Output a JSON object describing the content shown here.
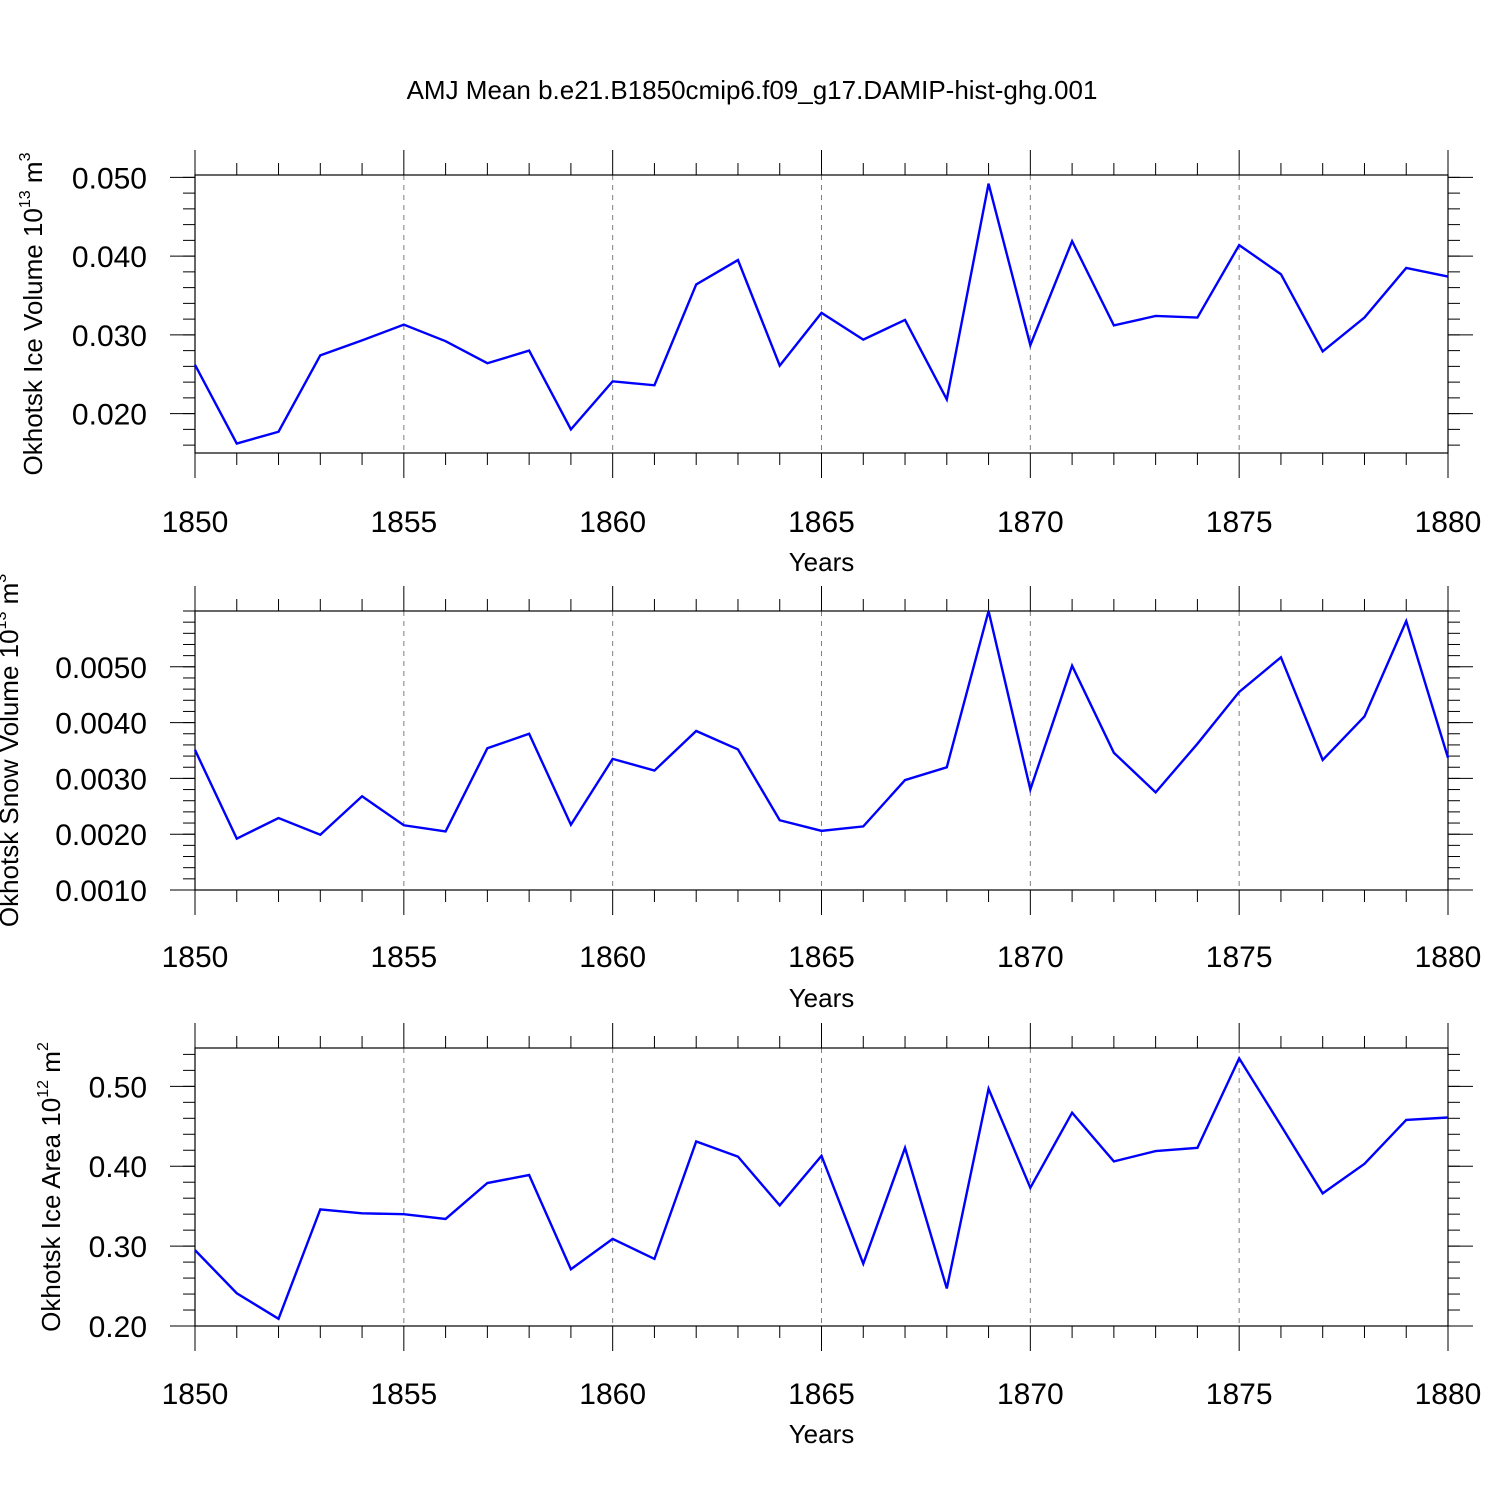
{
  "title": "AMJ Mean b.e21.B1850cmip6.f09_g17.DAMIP-hist-ghg.001",
  "series_color": "#0000ff",
  "chart_data": [
    {
      "type": "line",
      "ylabel_main": "Okhotsk Ice Volume 10",
      "ylabel_exp": "13",
      "ylabel_unit": " m",
      "ylabel_unit_exp": "3",
      "xlabel": "Years",
      "xlim": [
        1850,
        1880
      ],
      "ylim": [
        0.015,
        0.0503
      ],
      "x_major_ticks": [
        1850,
        1855,
        1860,
        1865,
        1870,
        1875,
        1880
      ],
      "x_tick_labels": [
        "1850",
        "1855",
        "1860",
        "1865",
        "1870",
        "1875",
        "1880"
      ],
      "y_major_ticks": [
        0.02,
        0.03,
        0.04,
        0.05
      ],
      "y_tick_labels": [
        "0.020",
        "0.030",
        "0.040",
        "0.050"
      ],
      "y_minor_step": 0.002,
      "grid": "vertical dashed at major x ticks",
      "x": [
        1850,
        1851,
        1852,
        1853,
        1854,
        1855,
        1856,
        1857,
        1858,
        1859,
        1860,
        1861,
        1862,
        1863,
        1864,
        1865,
        1866,
        1867,
        1868,
        1869,
        1870,
        1871,
        1872,
        1873,
        1874,
        1875,
        1876,
        1877,
        1878,
        1879,
        1880
      ],
      "values": [
        0.0262,
        0.0162,
        0.0177,
        0.0274,
        0.0293,
        0.0313,
        0.0292,
        0.0264,
        0.028,
        0.018,
        0.0241,
        0.0236,
        0.0364,
        0.0395,
        0.0261,
        0.0328,
        0.0294,
        0.0319,
        0.0218,
        0.0492,
        0.0287,
        0.0419,
        0.0312,
        0.0324,
        0.0322,
        0.0414,
        0.0377,
        0.0279,
        0.0322,
        0.0385,
        0.0374
      ]
    },
    {
      "type": "line",
      "ylabel_main": "Okhotsk Snow Volume 10",
      "ylabel_exp": "13",
      "ylabel_unit": " m",
      "ylabel_unit_exp": "3",
      "xlabel": "Years",
      "xlim": [
        1850,
        1880
      ],
      "ylim": [
        0.001,
        0.006
      ],
      "x_major_ticks": [
        1850,
        1855,
        1860,
        1865,
        1870,
        1875,
        1880
      ],
      "x_tick_labels": [
        "1850",
        "1855",
        "1860",
        "1865",
        "1870",
        "1875",
        "1880"
      ],
      "y_major_ticks": [
        0.001,
        0.002,
        0.003,
        0.004,
        0.005
      ],
      "y_tick_labels": [
        "0.0010",
        "0.0020",
        "0.0030",
        "0.0040",
        "0.0050"
      ],
      "y_minor_step": 0.0002,
      "grid": "vertical dashed at major x ticks",
      "x": [
        1850,
        1851,
        1852,
        1853,
        1854,
        1855,
        1856,
        1857,
        1858,
        1859,
        1860,
        1861,
        1862,
        1863,
        1864,
        1865,
        1866,
        1867,
        1868,
        1869,
        1870,
        1871,
        1872,
        1873,
        1874,
        1875,
        1876,
        1877,
        1878,
        1879,
        1880
      ],
      "values": [
        0.00351,
        0.00192,
        0.00229,
        0.00199,
        0.00268,
        0.00216,
        0.00205,
        0.00354,
        0.0038,
        0.00217,
        0.00335,
        0.00314,
        0.00385,
        0.00352,
        0.00225,
        0.00206,
        0.00214,
        0.00297,
        0.0032,
        0.006,
        0.0028,
        0.00502,
        0.00346,
        0.00275,
        0.00362,
        0.00455,
        0.00517,
        0.00333,
        0.00411,
        0.00582,
        0.00337
      ]
    },
    {
      "type": "line",
      "ylabel_main": "Okhotsk Ice Area 10",
      "ylabel_exp": "12",
      "ylabel_unit": " m",
      "ylabel_unit_exp": "2",
      "xlabel": "Years",
      "xlim": [
        1850,
        1880
      ],
      "ylim": [
        0.2,
        0.548
      ],
      "x_major_ticks": [
        1850,
        1855,
        1860,
        1865,
        1870,
        1875,
        1880
      ],
      "x_tick_labels": [
        "1850",
        "1855",
        "1860",
        "1865",
        "1870",
        "1875",
        "1880"
      ],
      "y_major_ticks": [
        0.2,
        0.3,
        0.4,
        0.5
      ],
      "y_tick_labels": [
        "0.20",
        "0.30",
        "0.40",
        "0.50"
      ],
      "y_minor_step": 0.02,
      "grid": "vertical dashed at major x ticks",
      "x": [
        1850,
        1851,
        1852,
        1853,
        1854,
        1855,
        1856,
        1857,
        1858,
        1859,
        1860,
        1861,
        1862,
        1863,
        1864,
        1865,
        1866,
        1867,
        1868,
        1869,
        1870,
        1871,
        1872,
        1873,
        1874,
        1875,
        1876,
        1877,
        1878,
        1879,
        1880
      ],
      "values": [
        0.295,
        0.241,
        0.209,
        0.346,
        0.341,
        0.34,
        0.334,
        0.379,
        0.389,
        0.271,
        0.309,
        0.284,
        0.431,
        0.412,
        0.351,
        0.413,
        0.278,
        0.423,
        0.247,
        0.497,
        0.373,
        0.467,
        0.406,
        0.419,
        0.423,
        0.535,
        0.451,
        0.366,
        0.403,
        0.458,
        0.461
      ]
    }
  ]
}
